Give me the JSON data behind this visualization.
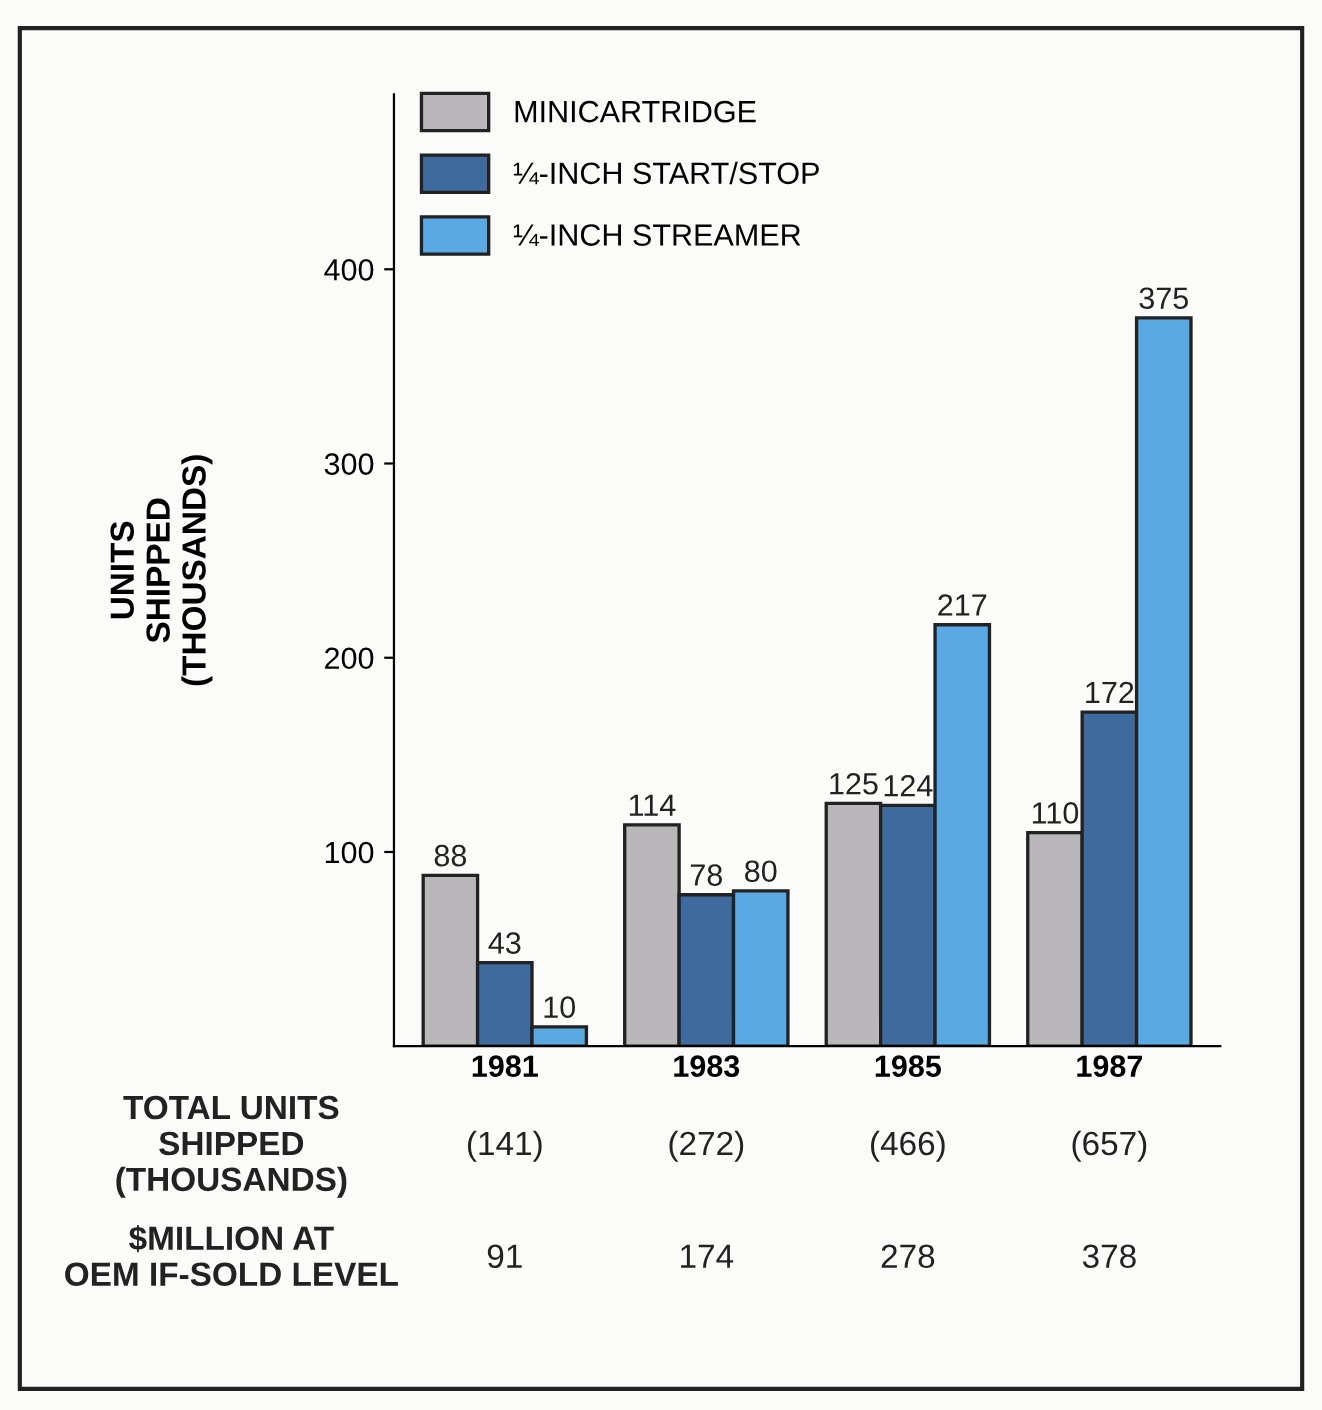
{
  "chart_data": {
    "type": "bar",
    "ylabel": "UNITS\nSHIPPED\n(THOUSANDS)",
    "categories": [
      "1981",
      "1983",
      "1985",
      "1987"
    ],
    "series": [
      {
        "name": "MINICARTRIDGE",
        "color": "#b9b7b9",
        "values": [
          88,
          114,
          125,
          110
        ]
      },
      {
        "name": "¼-INCH START/STOP",
        "color": "#3e6a9e",
        "values": [
          43,
          78,
          124,
          172
        ]
      },
      {
        "name": "¼-INCH STREAMER",
        "color": "#5aa9e2",
        "values": [
          10,
          80,
          217,
          375
        ]
      }
    ],
    "ylim": [
      0,
      490
    ],
    "yticks": [
      100,
      200,
      300,
      400
    ],
    "data_labels": true,
    "legend": "top left",
    "grid": false,
    "annotations": [
      "TOTAL UNITS\nSHIPPED\n(THOUSANDS)",
      "(141)",
      "(272)",
      "(466)",
      "(657)",
      "$MILLION AT\nOEM IF-SOLD LEVEL",
      "91",
      "174",
      "278",
      "378"
    ]
  }
}
